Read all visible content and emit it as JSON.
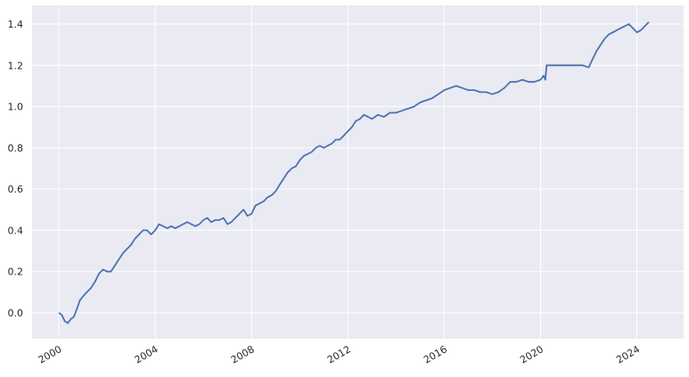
{
  "chart_data": {
    "type": "line",
    "title": "",
    "xlabel": "",
    "ylabel": "",
    "grid": true,
    "style": {
      "background": "#eaeaf2",
      "grid_color": "#ffffff",
      "line_color": "#4c72b0"
    },
    "xlim": [
      "2000-01-01",
      "2024-07-01"
    ],
    "ylim": [
      -0.12,
      1.45
    ],
    "x_ticks": [
      "2000",
      "2004",
      "2008",
      "2012",
      "2016",
      "2020",
      "2024"
    ],
    "y_ticks": [
      "0.0",
      "0.2",
      "0.4",
      "0.6",
      "0.8",
      "1.0",
      "1.2",
      "1.4"
    ],
    "series": [
      {
        "name": "",
        "x": [
          "2000-01-01",
          "2000-02-15",
          "2000-04-01",
          "2000-05-15",
          "2000-07-01",
          "2000-08-15",
          "2000-10-01",
          "2000-11-15",
          "2001-01-01",
          "2001-03-01",
          "2001-05-01",
          "2001-07-01",
          "2001-09-01",
          "2001-11-01",
          "2002-01-01",
          "2002-03-01",
          "2002-05-01",
          "2002-07-01",
          "2002-09-01",
          "2002-11-01",
          "2003-01-01",
          "2003-03-01",
          "2003-05-01",
          "2003-07-01",
          "2003-09-01",
          "2003-11-01",
          "2004-01-01",
          "2004-03-01",
          "2004-05-01",
          "2004-07-01",
          "2004-09-01",
          "2004-11-01",
          "2005-01-01",
          "2005-03-01",
          "2005-05-01",
          "2005-07-01",
          "2005-09-01",
          "2005-11-01",
          "2006-01-01",
          "2006-03-01",
          "2006-05-01",
          "2006-07-01",
          "2006-09-01",
          "2006-11-01",
          "2007-01-01",
          "2007-03-01",
          "2007-05-01",
          "2007-07-01",
          "2007-09-01",
          "2007-11-01",
          "2008-01-01",
          "2008-03-01",
          "2008-05-01",
          "2008-07-01",
          "2008-09-01",
          "2008-11-01",
          "2009-01-01",
          "2009-03-01",
          "2009-05-01",
          "2009-07-01",
          "2009-09-01",
          "2009-11-01",
          "2010-01-01",
          "2010-03-01",
          "2010-05-01",
          "2010-07-01",
          "2010-09-01",
          "2010-11-01",
          "2011-01-01",
          "2011-03-01",
          "2011-05-01",
          "2011-07-01",
          "2011-09-01",
          "2011-11-01",
          "2012-01-01",
          "2012-03-01",
          "2012-05-01",
          "2012-07-01",
          "2012-09-01",
          "2012-11-01",
          "2013-01-01",
          "2013-04-01",
          "2013-07-01",
          "2013-10-01",
          "2014-01-01",
          "2014-04-01",
          "2014-07-01",
          "2014-10-01",
          "2015-01-01",
          "2015-04-01",
          "2015-07-01",
          "2015-10-01",
          "2016-01-01",
          "2016-04-01",
          "2016-07-01",
          "2016-10-01",
          "2017-01-01",
          "2017-04-01",
          "2017-07-01",
          "2017-10-01",
          "2018-01-01",
          "2018-04-01",
          "2018-07-01",
          "2018-10-01",
          "2019-01-01",
          "2019-04-01",
          "2019-07-01",
          "2019-10-01",
          "2020-01-01",
          "2020-02-15",
          "2020-03-15",
          "2020-04-01",
          "2020-07-01",
          "2020-10-01",
          "2021-01-01",
          "2021-04-01",
          "2021-07-01",
          "2021-10-01",
          "2022-01-01",
          "2022-03-01",
          "2022-05-01",
          "2022-07-01",
          "2022-09-01",
          "2022-11-01",
          "2023-01-01",
          "2023-03-01",
          "2023-05-01",
          "2023-07-01",
          "2023-09-01",
          "2023-11-01",
          "2024-01-01",
          "2024-03-01",
          "2024-05-01",
          "2024-07-01"
        ],
        "y": [
          0.0,
          -0.01,
          -0.04,
          -0.05,
          -0.03,
          -0.02,
          0.02,
          0.06,
          0.08,
          0.1,
          0.12,
          0.15,
          0.19,
          0.21,
          0.2,
          0.2,
          0.23,
          0.26,
          0.29,
          0.31,
          0.33,
          0.36,
          0.38,
          0.4,
          0.4,
          0.38,
          0.4,
          0.43,
          0.42,
          0.41,
          0.42,
          0.41,
          0.42,
          0.43,
          0.44,
          0.43,
          0.42,
          0.43,
          0.45,
          0.46,
          0.44,
          0.45,
          0.45,
          0.46,
          0.43,
          0.44,
          0.46,
          0.48,
          0.5,
          0.47,
          0.48,
          0.52,
          0.53,
          0.54,
          0.56,
          0.57,
          0.59,
          0.62,
          0.65,
          0.68,
          0.7,
          0.71,
          0.74,
          0.76,
          0.77,
          0.78,
          0.8,
          0.81,
          0.8,
          0.81,
          0.82,
          0.84,
          0.84,
          0.86,
          0.88,
          0.9,
          0.93,
          0.94,
          0.96,
          0.95,
          0.94,
          0.96,
          0.95,
          0.97,
          0.97,
          0.98,
          0.99,
          1.0,
          1.02,
          1.03,
          1.04,
          1.06,
          1.08,
          1.09,
          1.1,
          1.09,
          1.08,
          1.08,
          1.07,
          1.07,
          1.06,
          1.07,
          1.09,
          1.12,
          1.12,
          1.13,
          1.12,
          1.12,
          1.13,
          1.15,
          1.13,
          1.2,
          1.2,
          1.2,
          1.2,
          1.2,
          1.2,
          1.2,
          1.19,
          1.23,
          1.27,
          1.3,
          1.33,
          1.35,
          1.36,
          1.37,
          1.38,
          1.39,
          1.4,
          1.38,
          1.36,
          1.37,
          1.39,
          1.41
        ]
      }
    ]
  }
}
